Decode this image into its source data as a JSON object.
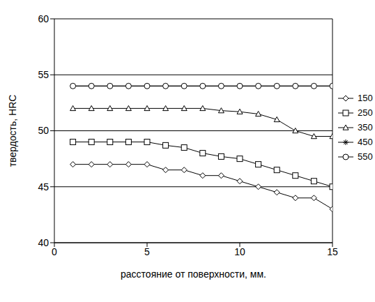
{
  "chart_data": {
    "type": "line",
    "x_label": "расстояние от поверхности, мм.",
    "y_label": "твердость, HRC",
    "x": [
      1,
      2,
      3,
      4,
      5,
      6,
      7,
      8,
      9,
      10,
      11,
      12,
      13,
      14,
      15
    ],
    "series": [
      {
        "name": "150",
        "color": "#000000",
        "marker": "diamond",
        "values": [
          47,
          47,
          47,
          47,
          47,
          46.5,
          46.5,
          46,
          46,
          45.5,
          45,
          44.5,
          44,
          44,
          43
        ]
      },
      {
        "name": "250",
        "color": "#000000",
        "marker": "square",
        "values": [
          49,
          49,
          49,
          49,
          49,
          48.7,
          48.5,
          48,
          47.7,
          47.5,
          47,
          46.5,
          46,
          45.5,
          45
        ]
      },
      {
        "name": "350",
        "color": "#000000",
        "marker": "triangle",
        "values": [
          52,
          52,
          52,
          52,
          52,
          52,
          52,
          52,
          51.8,
          51.7,
          51.5,
          51,
          50,
          49.5,
          49.5
        ]
      },
      {
        "name": "450",
        "color": "#000000",
        "marker": "star",
        "values": [
          54,
          54,
          54,
          54,
          54,
          54,
          54,
          54,
          54,
          54,
          54,
          54,
          54,
          54,
          54
        ]
      },
      {
        "name": "550",
        "color": "#000000",
        "marker": "circle",
        "values": [
          54,
          54,
          54,
          54,
          54,
          54,
          54,
          54,
          54,
          54,
          54,
          54,
          54,
          54,
          54
        ]
      }
    ],
    "xlim": [
      0,
      15
    ],
    "xticks": [
      0,
      5,
      10,
      15
    ],
    "ylim": [
      40,
      60
    ],
    "yticks": [
      40,
      45,
      50,
      55,
      60
    ],
    "grid": true,
    "legend": "right"
  }
}
